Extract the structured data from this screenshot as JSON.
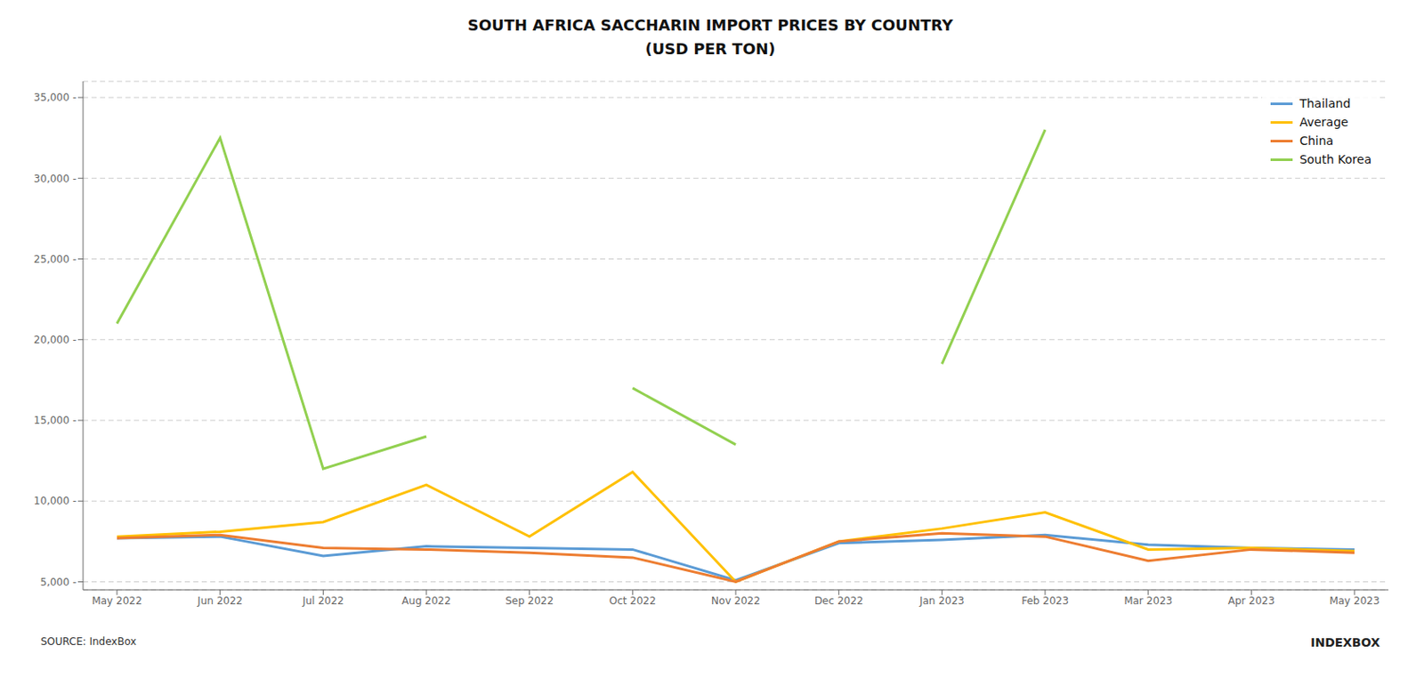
{
  "chart_data": {
    "type": "line",
    "title": "SOUTH AFRICA SACCHARIN IMPORT PRICES BY COUNTRY\n(USD PER TON)",
    "annotations": [
      "SOURCE: IndexBox",
      "INDEXBOX"
    ],
    "categories": [
      "May 2022",
      "Jun 2022",
      "Jul 2022",
      "Aug 2022",
      "Sep 2022",
      "Oct 2022",
      "Nov 2022",
      "Dec 2022",
      "Jan 2023",
      "Feb 2023",
      "Mar 2023",
      "Apr 2023",
      "May 2023"
    ],
    "series": [
      {
        "name": "Thailand",
        "color": "#5B9BD5",
        "values": [
          7700,
          7800,
          6600,
          7200,
          7100,
          7000,
          5100,
          7400,
          7600,
          7900,
          7300,
          7100,
          7000
        ]
      },
      {
        "name": "Average",
        "color": "#FFC000",
        "values": [
          7800,
          8100,
          8700,
          11000,
          7800,
          11800,
          5000,
          7500,
          8300,
          9300,
          7000,
          7100,
          6900
        ]
      },
      {
        "name": "China",
        "color": "#ED7D31",
        "values": [
          7700,
          7900,
          7100,
          7000,
          6800,
          6500,
          5000,
          7500,
          8000,
          7800,
          6300,
          7000,
          6800
        ]
      },
      {
        "name": "South Korea",
        "color": "#92D050",
        "values": [
          21000,
          32500,
          12000,
          14000,
          null,
          17000,
          13500,
          null,
          18500,
          33000,
          null,
          null,
          null
        ]
      }
    ],
    "ylim": [
      4500,
      36000
    ],
    "yticks": [
      {
        "value": 5000,
        "label": "5,000 -"
      },
      {
        "value": 10000,
        "label": "10,000 -"
      },
      {
        "value": 15000,
        "label": "15,000 -"
      },
      {
        "value": 20000,
        "label": "20,000 -"
      },
      {
        "value": 25000,
        "label": "25,000 -"
      },
      {
        "value": 30000,
        "label": "30,000 -"
      },
      {
        "value": 35000,
        "label": "35,000 -"
      }
    ],
    "grid": true,
    "legend": "upper right"
  }
}
